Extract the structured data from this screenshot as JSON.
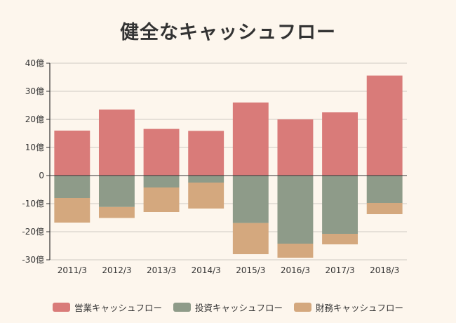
{
  "chart_data": {
    "type": "bar",
    "stacked": true,
    "title": "健全なキャッシュフロー",
    "xlabel": "",
    "ylabel": "",
    "ylim": [
      -30,
      40
    ],
    "yticks": [
      40,
      30,
      20,
      10,
      0,
      -10,
      -20,
      -30
    ],
    "ytick_labels": [
      "40億",
      "30億",
      "20億",
      "10億",
      "0",
      "-10億",
      "-20億",
      "-30億"
    ],
    "grid": true,
    "legend_position": "bottom",
    "categories": [
      "2011/3",
      "2012/3",
      "2013/3",
      "2014/3",
      "2015/3",
      "2016/3",
      "2017/3",
      "2018/3"
    ],
    "series": [
      {
        "name": "営業キャッシュフロー",
        "color": "#d97b79",
        "values": [
          16.0,
          23.5,
          16.6,
          15.9,
          26.0,
          20.0,
          22.5,
          35.6
        ]
      },
      {
        "name": "投資キャッシュフロー",
        "color": "#8e9b89",
        "values": [
          -8.0,
          -11.2,
          -4.25,
          -2.5,
          -16.9,
          -24.25,
          -20.75,
          -9.75
        ]
      },
      {
        "name": "財務キャッシュフロー",
        "color": "#d4a87e",
        "values": [
          -8.75,
          -3.9,
          -8.75,
          -9.25,
          -11.1,
          -5.0,
          -3.75,
          -4.0
        ]
      }
    ]
  }
}
